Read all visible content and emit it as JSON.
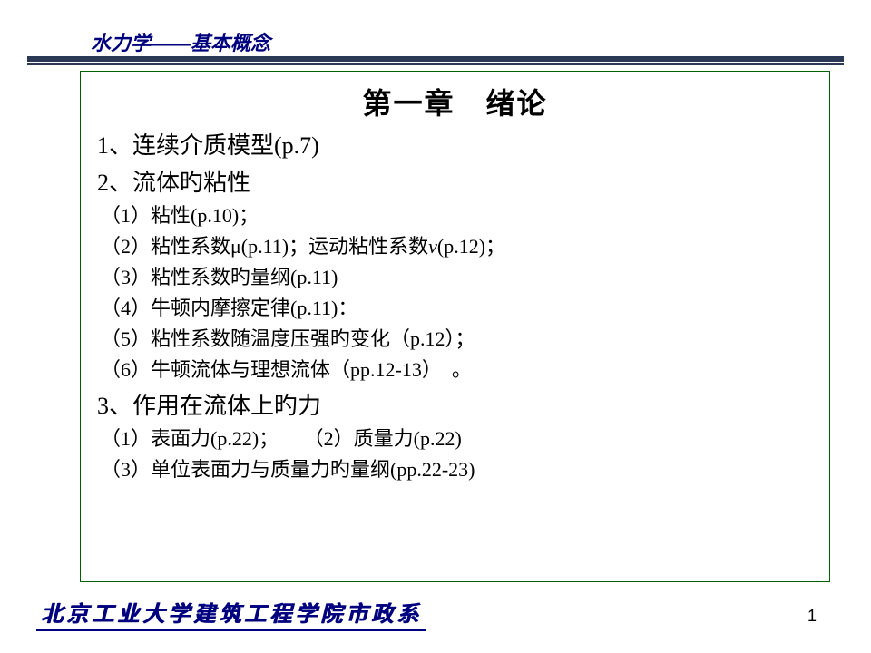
{
  "colors": {
    "accent": "#2b3856",
    "header_text": "#00007f",
    "box_border": "#006000",
    "body_text": "#000000",
    "bg": "#ffffff"
  },
  "header": {
    "title": "水力学——基本概念"
  },
  "content": {
    "chapter_title": "第一章　绪论",
    "item1": "1、连续介质模型(p.7)",
    "item2": "2、流体旳粘性",
    "sub2_1": "（1）粘性(p.10)；",
    "sub2_2a": "（2）粘性系数μ(p.11)；运动粘性系数",
    "sub2_2b": "(p.12)；",
    "sub2_3": "（3）粘性系数旳量纲(p.11)",
    "sub2_4": "（4）牛顿内摩擦定律(p.11)：",
    "sub2_5": "（5）粘性系数随温度压强旳变化（p.12）；",
    "sub2_6": "（6）牛顿流体与理想流体（pp.12-13）　。",
    "item3": "3、作用在流体上旳力",
    "sub3_1a": "（1）表面力(p.22)；",
    "sub3_1b": "（2）质量力(p.22)",
    "sub3_3": "（3）单位表面力与质量力旳量纲(pp.22-23)"
  },
  "footer": {
    "text": "北京工业大学建筑工程学院市政系"
  },
  "page_number": "1"
}
